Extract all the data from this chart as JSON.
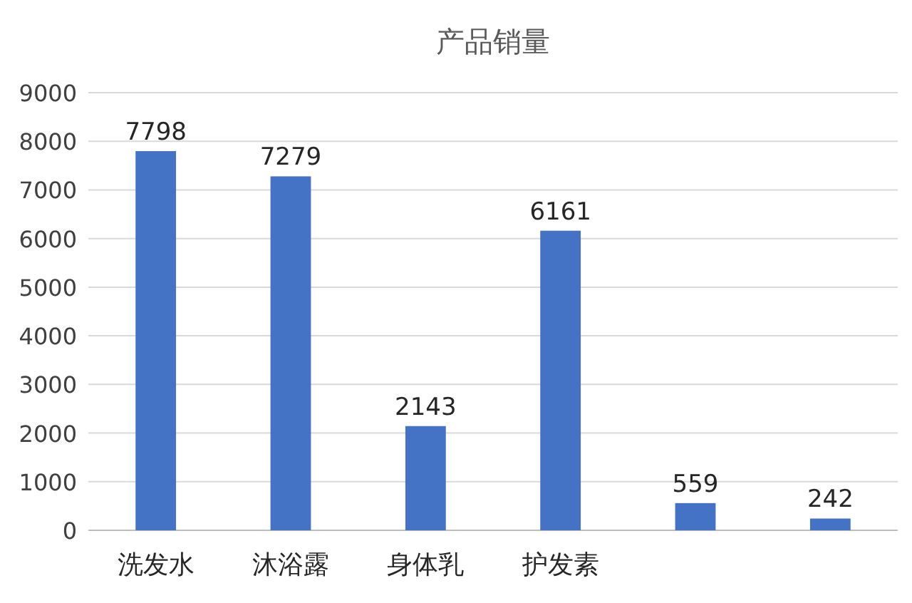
{
  "chart_data": {
    "type": "bar",
    "title": "产品销量",
    "categories": [
      "洗发水",
      "沐浴露",
      "身体乳",
      "护发素",
      null,
      null
    ],
    "values": [
      7798,
      7279,
      2143,
      6161,
      559,
      242
    ],
    "color": "#4472c4",
    "ylim": [
      0,
      9000
    ],
    "yticks": [
      0,
      1000,
      2000,
      3000,
      4000,
      5000,
      6000,
      7000,
      8000,
      9000
    ],
    "grid": "y",
    "data_labels": true
  }
}
